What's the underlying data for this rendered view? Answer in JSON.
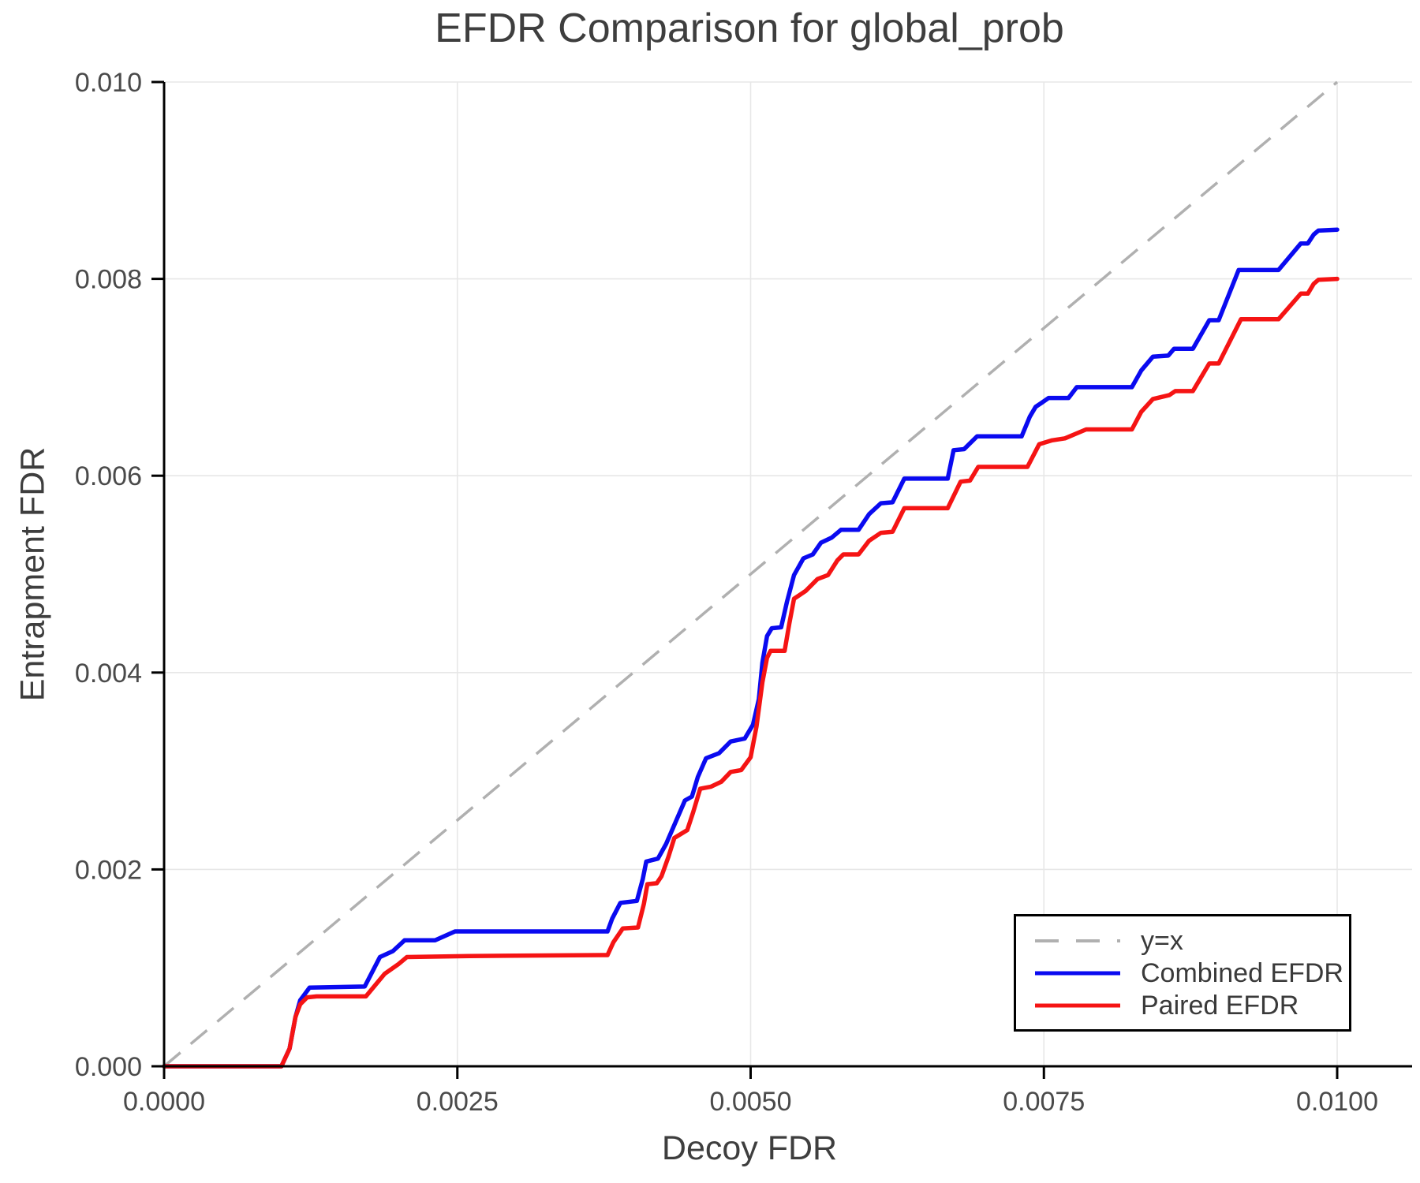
{
  "figure": {
    "title": "EFDR Comparison for global_prob",
    "x_axis_label": "Decoy FDR",
    "y_axis_label": "Entrapment FDR"
  },
  "chart_data": {
    "type": "line",
    "title": "EFDR Comparison for global_prob",
    "xlabel": "Decoy FDR",
    "ylabel": "Entrapment FDR",
    "xlim": [
      0.0,
      0.01
    ],
    "ylim": [
      0.0,
      0.01
    ],
    "grid": true,
    "x_ticks": {
      "values": [
        0.0,
        0.0025,
        0.005,
        0.0075,
        0.01
      ],
      "labels": [
        "0.0000",
        "0.0025",
        "0.0050",
        "0.0075",
        "0.0100"
      ]
    },
    "y_ticks": {
      "values": [
        0.0,
        0.002,
        0.004,
        0.006,
        0.008,
        0.01
      ],
      "labels": [
        "0.000",
        "0.002",
        "0.004",
        "0.006",
        "0.008",
        "0.010"
      ]
    },
    "colors": {
      "grid": "#e7e7e7",
      "spine": "#000000",
      "tick_text": "#4a4a4a",
      "title_text": "#3e3e3e",
      "reference": "#b0b0b0",
      "combined": "#0a0af0",
      "paired": "#f51414"
    },
    "legend": {
      "position": "lower right",
      "entries": [
        {
          "label": "y=x",
          "style": "dashed",
          "color": "#b0b0b0"
        },
        {
          "label": "Combined EFDR",
          "style": "solid",
          "color": "#0a0af0"
        },
        {
          "label": "Paired EFDR",
          "style": "solid",
          "color": "#f51414"
        }
      ]
    },
    "reference_line": {
      "label": "y=x",
      "from": [
        0.0,
        0.0
      ],
      "to": [
        0.01,
        0.01
      ],
      "dashed": true,
      "color": "#b0b0b0"
    },
    "series": [
      {
        "name": "Combined EFDR",
        "color": "#0a0af0",
        "points": [
          [
            0.0,
            0.0
          ],
          [
            0.001,
            0.0
          ],
          [
            0.00107,
            0.00018
          ],
          [
            0.00112,
            0.0005
          ],
          [
            0.00116,
            0.00067
          ],
          [
            0.00124,
            0.0008
          ],
          [
            0.00171,
            0.00081
          ],
          [
            0.00184,
            0.00111
          ],
          [
            0.00195,
            0.00117
          ],
          [
            0.00205,
            0.00128
          ],
          [
            0.00231,
            0.00128
          ],
          [
            0.00248,
            0.00137
          ],
          [
            0.00378,
            0.00137
          ],
          [
            0.00382,
            0.0015
          ],
          [
            0.00389,
            0.00166
          ],
          [
            0.00403,
            0.00168
          ],
          [
            0.00408,
            0.0019
          ],
          [
            0.00411,
            0.00208
          ],
          [
            0.00421,
            0.00211
          ],
          [
            0.00428,
            0.00226
          ],
          [
            0.00436,
            0.00248
          ],
          [
            0.00444,
            0.0027
          ],
          [
            0.0045,
            0.00274
          ],
          [
            0.00455,
            0.00294
          ],
          [
            0.00462,
            0.00313
          ],
          [
            0.00473,
            0.00318
          ],
          [
            0.00483,
            0.0033
          ],
          [
            0.00495,
            0.00333
          ],
          [
            0.00502,
            0.00347
          ],
          [
            0.00507,
            0.00373
          ],
          [
            0.0051,
            0.0041
          ],
          [
            0.00514,
            0.00437
          ],
          [
            0.00518,
            0.00445
          ],
          [
            0.00526,
            0.00446
          ],
          [
            0.00531,
            0.00472
          ],
          [
            0.00537,
            0.00499
          ],
          [
            0.00545,
            0.00516
          ],
          [
            0.00553,
            0.0052
          ],
          [
            0.0056,
            0.00532
          ],
          [
            0.00569,
            0.00537
          ],
          [
            0.00577,
            0.00545
          ],
          [
            0.00592,
            0.00545
          ],
          [
            0.00601,
            0.00561
          ],
          [
            0.00611,
            0.00572
          ],
          [
            0.00621,
            0.00573
          ],
          [
            0.00631,
            0.00597
          ],
          [
            0.00668,
            0.00597
          ],
          [
            0.00673,
            0.00626
          ],
          [
            0.00682,
            0.00627
          ],
          [
            0.00693,
            0.0064
          ],
          [
            0.00731,
            0.0064
          ],
          [
            0.00738,
            0.0066
          ],
          [
            0.00743,
            0.0067
          ],
          [
            0.00748,
            0.00674
          ],
          [
            0.00754,
            0.00679
          ],
          [
            0.00771,
            0.00679
          ],
          [
            0.00778,
            0.0069
          ],
          [
            0.00825,
            0.0069
          ],
          [
            0.00833,
            0.00707
          ],
          [
            0.00843,
            0.00721
          ],
          [
            0.00856,
            0.00722
          ],
          [
            0.00861,
            0.00729
          ],
          [
            0.00877,
            0.00729
          ],
          [
            0.00891,
            0.00758
          ],
          [
            0.00899,
            0.00758
          ],
          [
            0.00916,
            0.00809
          ],
          [
            0.0095,
            0.00809
          ],
          [
            0.00969,
            0.00836
          ],
          [
            0.00975,
            0.00836
          ],
          [
            0.0098,
            0.00845
          ],
          [
            0.00984,
            0.00849
          ],
          [
            0.01,
            0.0085
          ]
        ]
      },
      {
        "name": "Paired EFDR",
        "color": "#f51414",
        "points": [
          [
            0.0,
            0.0
          ],
          [
            0.001,
            0.0
          ],
          [
            0.00107,
            0.00018
          ],
          [
            0.00112,
            0.0005
          ],
          [
            0.00116,
            0.00063
          ],
          [
            0.00122,
            0.0007
          ],
          [
            0.0013,
            0.00071
          ],
          [
            0.00172,
            0.00071
          ],
          [
            0.00188,
            0.00094
          ],
          [
            0.002,
            0.00104
          ],
          [
            0.00207,
            0.00111
          ],
          [
            0.0026,
            0.00112
          ],
          [
            0.00378,
            0.00113
          ],
          [
            0.00383,
            0.00126
          ],
          [
            0.00391,
            0.0014
          ],
          [
            0.00404,
            0.00141
          ],
          [
            0.00409,
            0.00165
          ],
          [
            0.00412,
            0.00185
          ],
          [
            0.0042,
            0.00186
          ],
          [
            0.00424,
            0.00193
          ],
          [
            0.0043,
            0.00213
          ],
          [
            0.00435,
            0.00232
          ],
          [
            0.00446,
            0.0024
          ],
          [
            0.00451,
            0.00258
          ],
          [
            0.00457,
            0.00282
          ],
          [
            0.00466,
            0.00284
          ],
          [
            0.00475,
            0.00289
          ],
          [
            0.00483,
            0.00299
          ],
          [
            0.00492,
            0.00301
          ],
          [
            0.005,
            0.00314
          ],
          [
            0.00505,
            0.00345
          ],
          [
            0.0051,
            0.0039
          ],
          [
            0.00514,
            0.00415
          ],
          [
            0.00517,
            0.00422
          ],
          [
            0.00529,
            0.00422
          ],
          [
            0.00533,
            0.0045
          ],
          [
            0.00537,
            0.00475
          ],
          [
            0.00547,
            0.00483
          ],
          [
            0.00557,
            0.00495
          ],
          [
            0.00566,
            0.00499
          ],
          [
            0.00574,
            0.00514
          ],
          [
            0.00579,
            0.0052
          ],
          [
            0.00592,
            0.0052
          ],
          [
            0.00601,
            0.00534
          ],
          [
            0.00611,
            0.00542
          ],
          [
            0.00621,
            0.00543
          ],
          [
            0.00631,
            0.00567
          ],
          [
            0.00668,
            0.00567
          ],
          [
            0.00679,
            0.00594
          ],
          [
            0.00687,
            0.00595
          ],
          [
            0.00694,
            0.00609
          ],
          [
            0.00736,
            0.00609
          ],
          [
            0.00746,
            0.00632
          ],
          [
            0.00757,
            0.00636
          ],
          [
            0.00768,
            0.00638
          ],
          [
            0.00778,
            0.00643
          ],
          [
            0.00786,
            0.00647
          ],
          [
            0.00825,
            0.00647
          ],
          [
            0.00833,
            0.00665
          ],
          [
            0.00843,
            0.00678
          ],
          [
            0.00857,
            0.00682
          ],
          [
            0.00862,
            0.00686
          ],
          [
            0.00877,
            0.00686
          ],
          [
            0.00891,
            0.00714
          ],
          [
            0.00899,
            0.00714
          ],
          [
            0.00918,
            0.00759
          ],
          [
            0.0095,
            0.00759
          ],
          [
            0.00969,
            0.00785
          ],
          [
            0.00975,
            0.00785
          ],
          [
            0.0098,
            0.00795
          ],
          [
            0.00984,
            0.00799
          ],
          [
            0.01,
            0.008
          ]
        ]
      }
    ]
  }
}
